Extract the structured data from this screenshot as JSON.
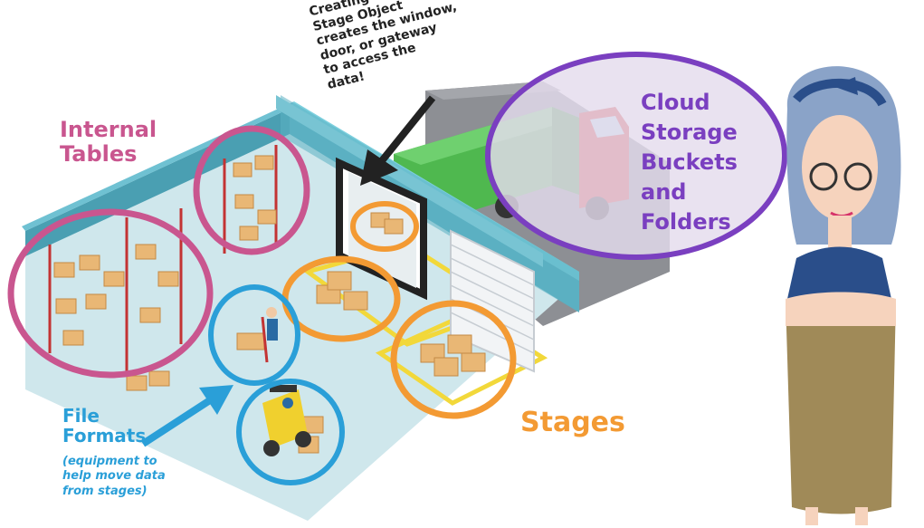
{
  "labels": {
    "internal_tables": [
      "Internal",
      "Tables"
    ],
    "cloud_storage": [
      "Cloud",
      "Storage",
      "Buckets",
      "and",
      "Folders"
    ],
    "stages": "Stages",
    "file_formats": [
      "File",
      "Formats"
    ],
    "file_formats_note": [
      "(equipment to",
      "help move data",
      "from stages)"
    ],
    "stage_object_callout": [
      "Creating the",
      "Stage Object",
      "creates the window,",
      "door, or gateway",
      "to access the",
      "data!"
    ]
  },
  "colors": {
    "internal_tables": "#c9568f",
    "cloud_storage": "#7a3fc0",
    "stages": "#f39a33",
    "file_formats": "#2a9fd8",
    "callout": "#222222",
    "warehouse_wall": "#5bb0c2",
    "warehouse_floor": "#cfe7ec",
    "truck_cargo": "#4fb84f",
    "truck_cab": "#d6332f"
  }
}
